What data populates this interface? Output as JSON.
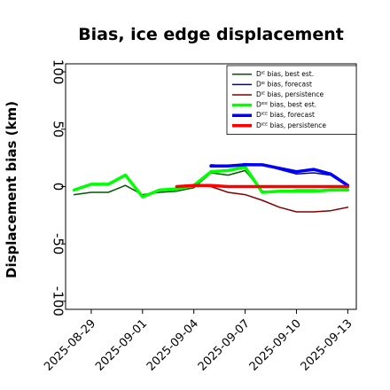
{
  "chart_data": {
    "type": "line",
    "title": "Bias, ice edge displacement",
    "xlabel": "",
    "ylabel": "Displacement bias (km)",
    "ylim": [
      -107,
      107
    ],
    "yticks": [
      -100,
      -50,
      0,
      50,
      100
    ],
    "grid": false,
    "legend_position": "top-right",
    "x": [
      "2025-08-28",
      "2025-08-29",
      "2025-08-30",
      "2025-08-31",
      "2025-09-01",
      "2025-09-02",
      "2025-09-03",
      "2025-09-04",
      "2025-09-05",
      "2025-09-06",
      "2025-09-07",
      "2025-09-08",
      "2025-09-09",
      "2025-09-10",
      "2025-09-11",
      "2025-09-12",
      "2025-09-13"
    ],
    "xlim": [
      "2025-08-27T12:00",
      "2025-09-13T12:00"
    ],
    "xticks": [
      {
        "date": "2025-08-29",
        "label": "2025-08-29",
        "color": "#000000"
      },
      {
        "date": "2025-09-01",
        "label": "2025-09-01",
        "color": "#000000"
      },
      {
        "date": "2025-09-04",
        "label": "2025-09-04",
        "color": "#008000"
      },
      {
        "date": "2025-09-07",
        "label": "2025-09-07",
        "color": "#000000"
      },
      {
        "date": "2025-09-10",
        "label": "2025-09-10",
        "color": "#000000"
      },
      {
        "date": "2025-09-13",
        "label": "2025-09-13",
        "color": "#000000"
      }
    ],
    "series": [
      {
        "name": "Dᴵᴱ bias, best est.",
        "color": "#005500",
        "width": 1.5,
        "values": [
          -7,
          -5,
          -5,
          1,
          -7,
          -5,
          -4,
          -1,
          12,
          10,
          14,
          -4,
          -4,
          -3,
          -3,
          -3,
          -2
        ]
      },
      {
        "name": "Dᴵᴱ bias, forecast",
        "color": "#0000aa",
        "width": 1.5,
        "values": [
          null,
          null,
          null,
          null,
          null,
          null,
          null,
          null,
          19,
          18,
          20,
          19,
          15,
          11,
          12,
          10,
          0
        ]
      },
      {
        "name": "Dᴵᴱ bias, persistence",
        "color": "#800000",
        "width": 1.5,
        "values": [
          null,
          null,
          null,
          null,
          null,
          null,
          0,
          1,
          0,
          -5,
          -7,
          -12,
          -18,
          -22,
          -22,
          -21,
          -18
        ]
      },
      {
        "name": "Dᴵᴱᴱ bias, best est.",
        "color": "#00ff00",
        "width": 3.5,
        "values": [
          -3,
          2,
          2,
          10,
          -9,
          -3,
          -2,
          1,
          13,
          14,
          17,
          -5,
          -4,
          -4,
          -4,
          -3,
          -3
        ]
      },
      {
        "name": "Dᴵᴱᴱ bias, forecast",
        "color": "#0000ff",
        "width": 3.5,
        "values": [
          null,
          null,
          null,
          null,
          null,
          null,
          null,
          null,
          18,
          18,
          19,
          19,
          16,
          13,
          15,
          11,
          1
        ]
      },
      {
        "name": "Dᴵᴱᴱ bias, persistence",
        "color": "#ff0000",
        "width": 3.5,
        "values": [
          null,
          null,
          null,
          null,
          null,
          null,
          0,
          1,
          1,
          0,
          0,
          0,
          0,
          0,
          0,
          0,
          0
        ]
      }
    ]
  }
}
